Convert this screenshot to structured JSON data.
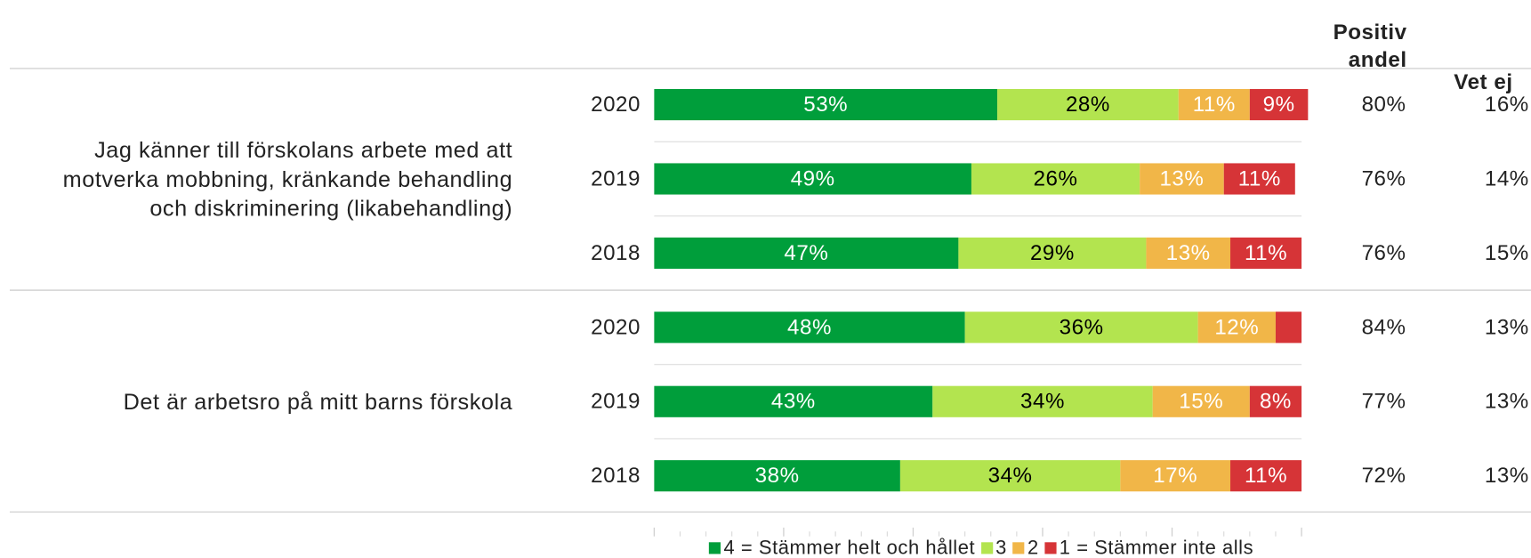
{
  "chart_data": {
    "type": "stacked-bar",
    "categories": [
      "2020",
      "2019",
      "2018",
      "2020",
      "2019",
      "2018"
    ],
    "group_labels": [
      "Jag känner till förskolans arbete med att motverka mobbning, kränkande behandling och diskriminering (likabehandling)",
      "Det är arbetsro på mitt barns förskola"
    ],
    "series": [
      {
        "name": "4 = Stämmer helt och hållet",
        "color": "#009e3b",
        "label_color": "#ffffff",
        "values": [
          53,
          49,
          47,
          48,
          43,
          38
        ],
        "value_labels": [
          "53%",
          "49%",
          "47%",
          "48%",
          "43%",
          "38%"
        ]
      },
      {
        "name": "3",
        "color": "#b3e44f",
        "label_color": "#000000",
        "values": [
          28,
          26,
          29,
          36,
          34,
          34
        ],
        "value_labels": [
          "28%",
          "26%",
          "29%",
          "36%",
          "34%",
          "34%"
        ]
      },
      {
        "name": "2",
        "color": "#f1b648",
        "label_color": "#ffffff",
        "values": [
          11,
          13,
          13,
          12,
          15,
          17
        ],
        "value_labels": [
          "11%",
          "13%",
          "13%",
          "12%",
          "15%",
          "17%"
        ]
      },
      {
        "name": "1 = Stämmer inte alls",
        "color": "#d63437",
        "label_color": "#ffffff",
        "values": [
          9,
          11,
          11,
          4,
          8,
          11
        ],
        "value_labels": [
          "9%",
          "11%",
          "11%",
          null,
          "8%",
          "11%"
        ]
      }
    ],
    "columns": [
      {
        "title": "Positiv andel",
        "values": [
          80,
          76,
          76,
          84,
          77,
          72
        ],
        "value_labels": [
          "80%",
          "76%",
          "76%",
          "84%",
          "77%",
          "72%"
        ]
      },
      {
        "title": "Vet ej",
        "values": [
          16,
          14,
          15,
          13,
          13,
          13
        ],
        "value_labels": [
          "16%",
          "14%",
          "15%",
          "13%",
          "13%",
          "13%"
        ]
      }
    ],
    "xlim": [
      0,
      100
    ],
    "xticks": [
      0,
      20,
      40,
      60,
      80,
      100
    ]
  }
}
